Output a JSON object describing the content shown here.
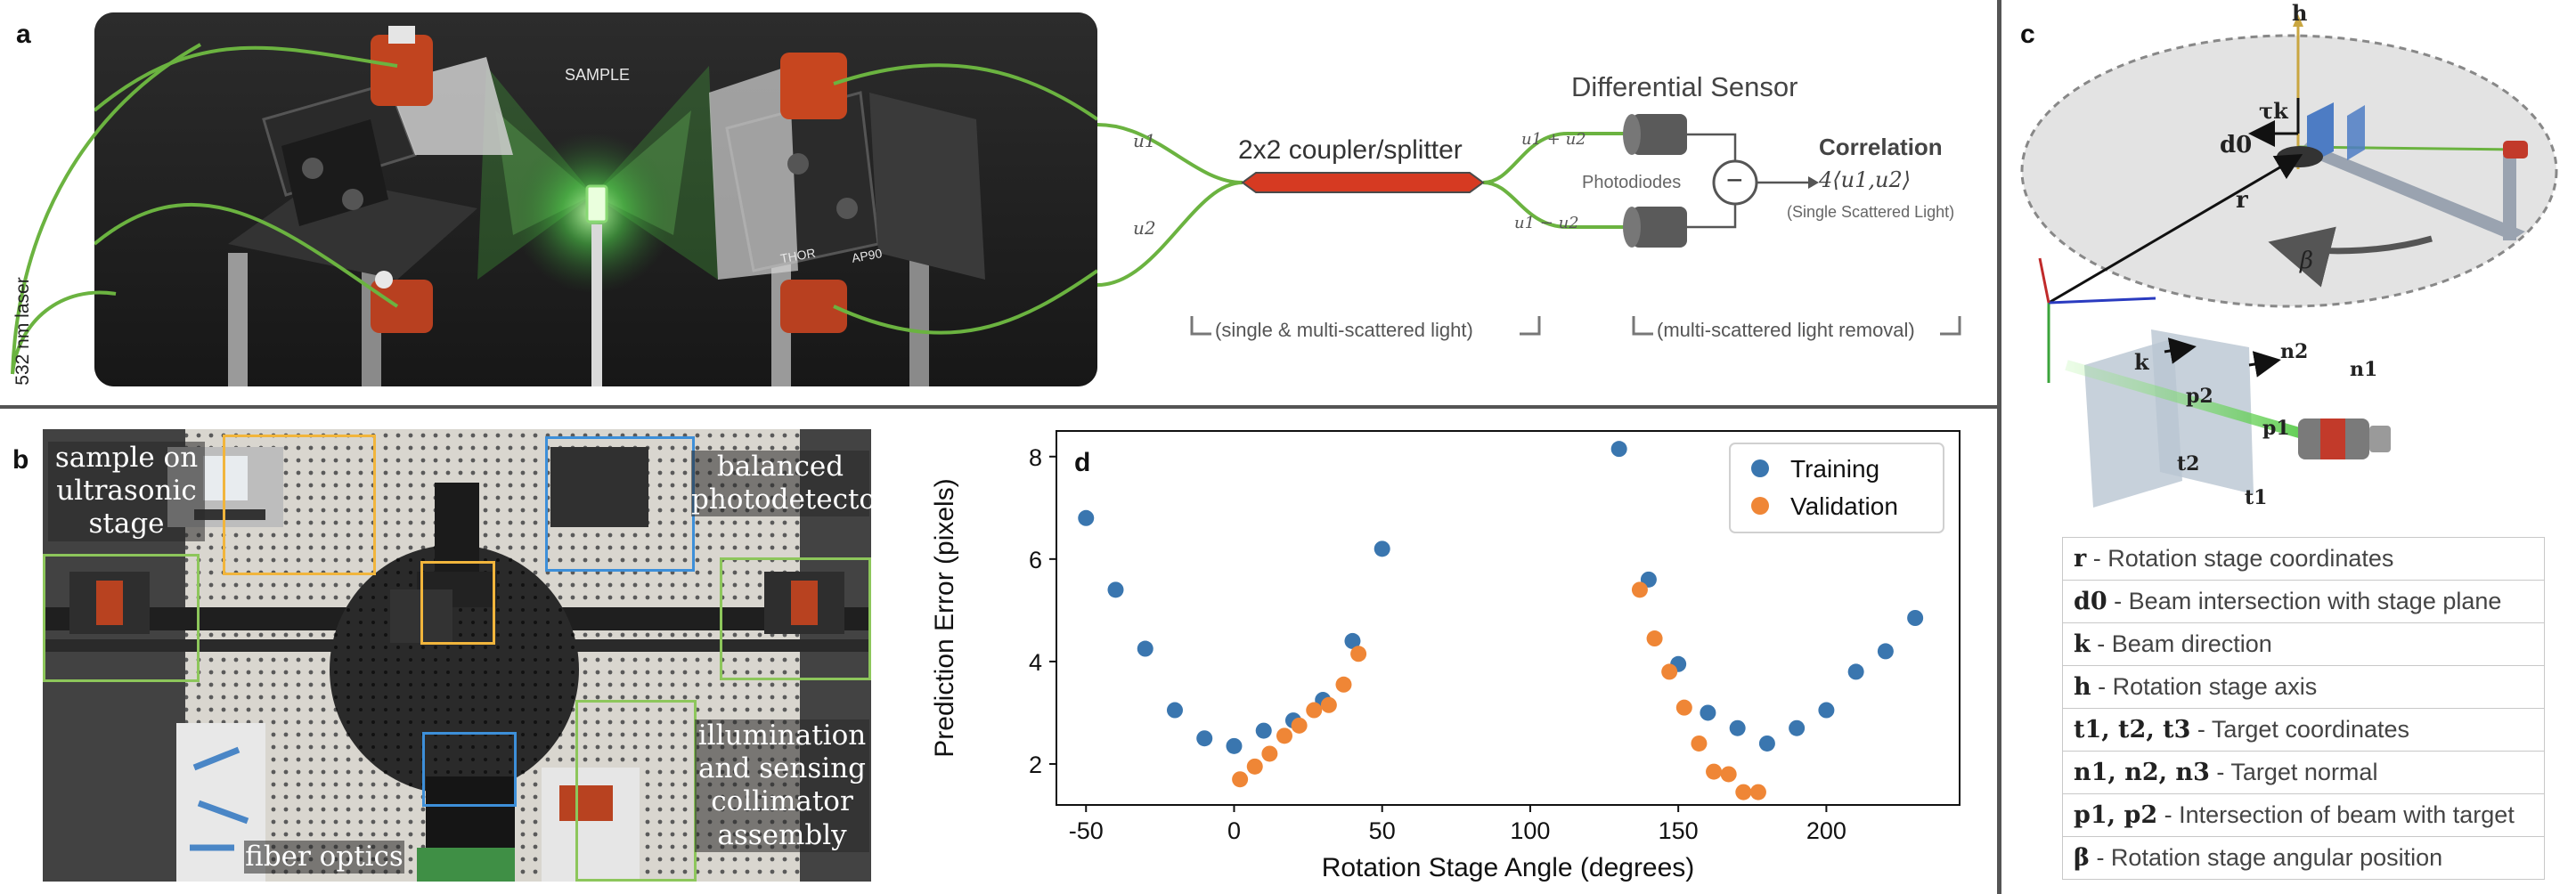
{
  "panels": {
    "a": "a",
    "b": "b",
    "c": "c",
    "d": "d"
  },
  "panel_a": {
    "laser_label": "532 nm laser",
    "sample_label": "SAMPLE",
    "u1": "u1",
    "u2": "u2",
    "coupler_label": "2x2 coupler/splitter",
    "sensor_title": "Differential Sensor",
    "sum_label": "u1 + u2",
    "diff_label": "u1 − u2",
    "photodiodes_label": "Photodiodes",
    "minus_symbol": "−",
    "correlation_title": "Correlation",
    "correlation_formula": "4⟨u1,u2⟩",
    "single_scattered": "(Single Scattered Light)",
    "bracket_left": "(single & multi-scattered light)",
    "bracket_right": "(multi-scattered light removal)",
    "mount_text_1": "THOR",
    "mount_text_2": "AP90"
  },
  "panel_b": {
    "label_sample": "sample on ultrasonic stage",
    "label_balanced": "balanced photodetector",
    "label_fiber": "fiber optics",
    "label_illumination": "illumination and sensing collimator assembly"
  },
  "panel_c": {
    "h": "h",
    "tau_k": "τk",
    "d0": "d0",
    "r": "r",
    "beta": "β",
    "k": "k",
    "p1": "p1",
    "p2": "p2",
    "n1": "n1",
    "n2": "n2",
    "t1": "t1",
    "t2": "t2",
    "legend": [
      {
        "sym": "r",
        "text": " - Rotation stage coordinates"
      },
      {
        "sym": "d0",
        "text": " - Beam intersection with stage plane"
      },
      {
        "sym": "k",
        "text": " - Beam direction"
      },
      {
        "sym": "h",
        "text": " - Rotation stage axis"
      },
      {
        "sym": "t1, t2, t3",
        "text": " - Target coordinates"
      },
      {
        "sym": "n1, n2, n3",
        "text": " - Target normal"
      },
      {
        "sym": "p1, p2",
        "text": " - Intersection of beam with target"
      },
      {
        "sym": "β",
        "text": " - Rotation stage angular position"
      }
    ]
  },
  "colors": {
    "training": "#3a76af",
    "validation": "#ef8636",
    "fiber_green": "#6bb340",
    "coupler_red": "#d63a22",
    "box_green": "#8dc65b",
    "box_orange": "#f1b53c",
    "box_blue": "#3d8fd9"
  },
  "chart_data": {
    "type": "scatter",
    "xlabel": "Rotation Stage Angle (degrees)",
    "ylabel": "Prediction Error (pixels)",
    "xlim": [
      -60,
      245
    ],
    "ylim": [
      1.2,
      8.5
    ],
    "xticks": [
      -50,
      0,
      50,
      100,
      150,
      200
    ],
    "yticks": [
      2,
      4,
      6,
      8
    ],
    "legend_position": "top-right",
    "series": [
      {
        "name": "Training",
        "color": "#3a76af",
        "x": [
          -50,
          -40,
          -30,
          -20,
          -10,
          0,
          10,
          20,
          30,
          40,
          50,
          130,
          140,
          150,
          160,
          170,
          180,
          190,
          200,
          210,
          220,
          230
        ],
        "y": [
          6.8,
          5.4,
          4.25,
          3.05,
          2.5,
          2.35,
          2.65,
          2.85,
          3.25,
          4.4,
          6.2,
          8.15,
          5.6,
          3.95,
          3.0,
          2.7,
          2.4,
          2.7,
          3.05,
          3.8,
          4.2,
          4.85
        ]
      },
      {
        "name": "Validation",
        "color": "#ef8636",
        "x": [
          2,
          7,
          12,
          17,
          22,
          27,
          32,
          37,
          42,
          137,
          142,
          147,
          152,
          157,
          162,
          167,
          172,
          177
        ],
        "y": [
          1.7,
          1.95,
          2.2,
          2.55,
          2.75,
          3.05,
          3.15,
          3.55,
          4.15,
          5.4,
          4.45,
          3.8,
          3.1,
          2.4,
          1.85,
          1.8,
          1.45,
          1.45
        ]
      }
    ]
  }
}
